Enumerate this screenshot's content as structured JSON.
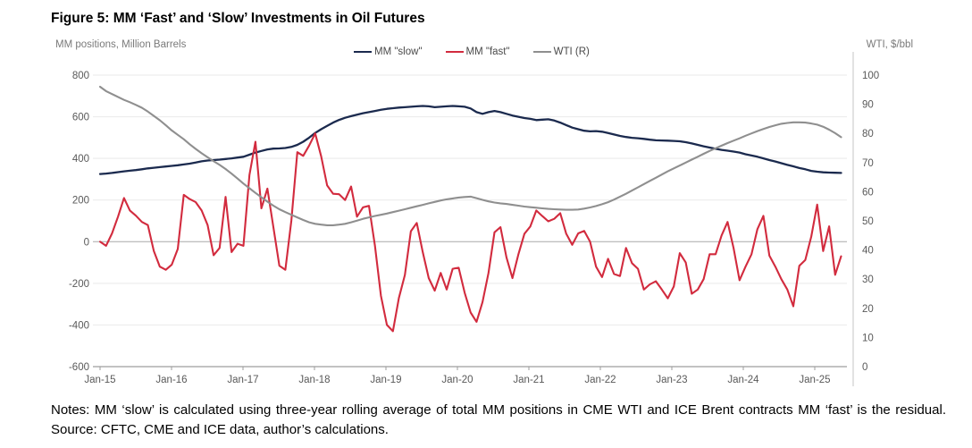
{
  "header": {
    "title": "Figure 5: MM ‘Fast’ and ‘Slow’ Investments in Oil Futures",
    "left_axis_unit": "MM positions, Million Barrels",
    "right_axis_unit": "WTI, $/bbl"
  },
  "legend": [
    {
      "label": "MM \"slow\"",
      "color": "#1b2a4e"
    },
    {
      "label": "MM \"fast\"",
      "color": "#d22b3e"
    },
    {
      "label": "WTI (R)",
      "color": "#8f8f8f"
    }
  ],
  "notes": "Notes: MM ‘slow’ is calculated using three-year rolling average of total MM positions in CME WTI and ICE Brent contracts MM ‘fast’ is the residual. Source: CFTC, CME and ICE data, author’s calculations.",
  "colors": {
    "grid": "#e9e9e9",
    "zero_line": "#a8a8a8",
    "axis_line": "#9e9e9e",
    "right_axis_line": "#c4c4c4",
    "tick_label": "#595959"
  },
  "chart_data": {
    "type": "line",
    "title": "Figure 5: MM ‘Fast’ and ‘Slow’ Investments in Oil Futures",
    "x_unit": "monthly, Jan-2015 to May-2025",
    "x_tick_labels": [
      "Jan-15",
      "Jan-16",
      "Jan-17",
      "Jan-18",
      "Jan-19",
      "Jan-20",
      "Jan-21",
      "Jan-22",
      "Jan-23",
      "Jan-24",
      "Jan-25"
    ],
    "left_axis": {
      "label": "MM positions, Million Barrels",
      "ylim": [
        -600,
        800
      ],
      "ticks": [
        800,
        600,
        400,
        200,
        0,
        -200,
        -400,
        -600
      ]
    },
    "right_axis": {
      "label": "WTI, $/bbl",
      "ylim": [
        0,
        100
      ],
      "ticks": [
        100,
        90,
        80,
        70,
        60,
        50,
        40,
        30,
        20,
        10,
        0
      ]
    },
    "grid": "horizontal",
    "legend_position": "top-center",
    "series": [
      {
        "name": "MM \"slow\"",
        "axis": "left",
        "color": "#1b2a4e",
        "width": 2.3,
        "values": [
          325,
          327,
          330,
          334,
          338,
          341,
          344,
          348,
          352,
          355,
          358,
          361,
          364,
          367,
          371,
          375,
          380,
          386,
          390,
          392,
          394,
          397,
          400,
          404,
          408,
          418,
          428,
          436,
          443,
          447,
          448,
          450,
          455,
          465,
          480,
          500,
          522,
          540,
          556,
          572,
          585,
          595,
          603,
          610,
          617,
          622,
          628,
          634,
          638,
          641,
          644,
          646,
          648,
          650,
          652,
          650,
          646,
          648,
          650,
          652,
          650,
          648,
          640,
          622,
          614,
          622,
          628,
          622,
          614,
          606,
          600,
          594,
          590,
          584,
          586,
          588,
          582,
          572,
          560,
          548,
          540,
          533,
          530,
          531,
          528,
          522,
          515,
          508,
          503,
          499,
          497,
          494,
          490,
          487,
          486,
          485,
          484,
          482,
          478,
          472,
          465,
          458,
          452,
          446,
          441,
          437,
          433,
          428,
          420,
          414,
          408,
          400,
          392,
          385,
          377,
          369,
          362,
          354,
          348,
          340,
          336,
          333,
          332,
          331,
          330
        ]
      },
      {
        "name": "MM \"fast\"",
        "axis": "left",
        "color": "#d22b3e",
        "width": 2.1,
        "values": [
          0,
          -20,
          40,
          120,
          210,
          150,
          125,
          95,
          80,
          -45,
          -120,
          -135,
          -110,
          -35,
          225,
          205,
          190,
          150,
          80,
          -65,
          -30,
          215,
          -50,
          -10,
          -20,
          320,
          480,
          160,
          255,
          70,
          -115,
          -135,
          100,
          430,
          412,
          462,
          520,
          410,
          270,
          230,
          228,
          200,
          265,
          120,
          165,
          172,
          -20,
          -260,
          -400,
          -430,
          -270,
          -160,
          50,
          90,
          -50,
          -175,
          -235,
          -150,
          -230,
          -130,
          -125,
          -245,
          -340,
          -385,
          -290,
          -150,
          45,
          70,
          -75,
          -175,
          -60,
          38,
          73,
          150,
          123,
          98,
          110,
          137,
          38,
          -15,
          40,
          52,
          0,
          -120,
          -170,
          -82,
          -155,
          -165,
          -30,
          -103,
          -130,
          -230,
          -205,
          -190,
          -230,
          -272,
          -215,
          -55,
          -100,
          -250,
          -230,
          -180,
          -60,
          -60,
          30,
          95,
          -30,
          -185,
          -120,
          -60,
          60,
          124,
          -67,
          -120,
          -180,
          -230,
          -310,
          -116,
          -88,
          25,
          178,
          -45,
          74,
          -159,
          -70
        ]
      },
      {
        "name": "WTI (R)",
        "axis": "right",
        "color": "#8f8f8f",
        "width": 2.1,
        "values": [
          96,
          94.5,
          93.5,
          92.5,
          91.5,
          90.7,
          89.8,
          88.8,
          87.5,
          86,
          84.5,
          82.8,
          81,
          79.5,
          78,
          76.3,
          74.7,
          73.2,
          71.8,
          70.5,
          69.2,
          67.8,
          66.2,
          64.5,
          62.8,
          61.2,
          59.6,
          58.1,
          56.6,
          55.2,
          54,
          53,
          52.1,
          51.2,
          50.3,
          49.5,
          49,
          48.7,
          48.5,
          48.5,
          48.7,
          49,
          49.5,
          50.1,
          50.7,
          51.2,
          51.7,
          52.1,
          52.5,
          53,
          53.5,
          54,
          54.5,
          55,
          55.5,
          56,
          56.5,
          57,
          57.4,
          57.7,
          58,
          58.2,
          58.3,
          57.8,
          57.2,
          56.7,
          56.3,
          56,
          55.8,
          55.5,
          55.2,
          54.9,
          54.7,
          54.5,
          54.3,
          54.1,
          54,
          53.9,
          53.8,
          53.8,
          53.9,
          54.2,
          54.6,
          55.1,
          55.7,
          56.4,
          57.3,
          58.3,
          59.3,
          60.4,
          61.5,
          62.6,
          63.7,
          64.8,
          65.9,
          67,
          68,
          69,
          70,
          71,
          72,
          73,
          74,
          74.9,
          75.8,
          76.7,
          77.5,
          78.3,
          79.2,
          80,
          80.8,
          81.5,
          82.2,
          82.8,
          83.3,
          83.6,
          83.8,
          83.8,
          83.7,
          83.4,
          83,
          82.3,
          81.3,
          80.1,
          78.7
        ]
      }
    ]
  }
}
